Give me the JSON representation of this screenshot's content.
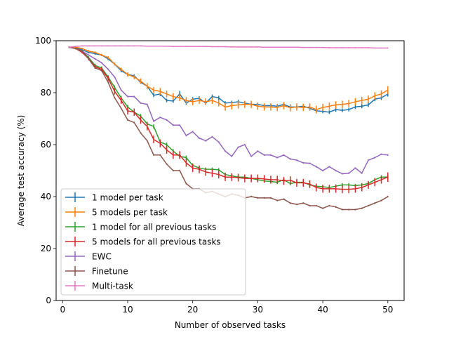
{
  "chart_data": {
    "type": "line",
    "xlabel": "Number of observed tasks",
    "ylabel": "Average test accuracy (%)",
    "xlim": [
      -1,
      52.5
    ],
    "ylim": [
      0,
      100
    ],
    "xticks": [
      0,
      10,
      20,
      30,
      40,
      50
    ],
    "yticks": [
      0,
      20,
      40,
      60,
      80,
      100
    ],
    "grid": false,
    "legend_position": "lower-left",
    "x": [
      1,
      2,
      3,
      4,
      5,
      6,
      7,
      8,
      9,
      10,
      11,
      12,
      13,
      14,
      15,
      16,
      17,
      18,
      19,
      20,
      21,
      22,
      23,
      24,
      25,
      26,
      27,
      28,
      29,
      30,
      31,
      32,
      33,
      34,
      35,
      36,
      37,
      38,
      39,
      40,
      41,
      42,
      43,
      44,
      45,
      46,
      47,
      48,
      49,
      50
    ],
    "series": [
      {
        "name": "1 model per task",
        "color": "#1f77b4",
        "error_bars": true,
        "values": [
          97.5,
          97.3,
          96.5,
          95.5,
          95.0,
          94.5,
          93.0,
          91.0,
          88.5,
          87.0,
          86.5,
          84.0,
          82.5,
          79.0,
          79.5,
          77.0,
          76.8,
          79.5,
          76.0,
          77.5,
          77.8,
          76.0,
          78.5,
          78.0,
          76.0,
          76.2,
          76.5,
          76.0,
          75.5,
          75.5,
          75.0,
          75.0,
          74.8,
          75.5,
          74.5,
          74.5,
          74.8,
          74.0,
          73.0,
          72.8,
          72.5,
          73.5,
          73.2,
          73.5,
          74.5,
          74.8,
          75.3,
          77.5,
          78.0,
          79.5
        ],
        "errors": [
          0.3,
          0.3,
          0.3,
          0.4,
          0.4,
          0.4,
          0.5,
          0.5,
          0.6,
          0.6,
          0.6,
          0.6,
          0.7,
          0.7,
          0.8,
          0.7,
          0.7,
          1.2,
          0.7,
          0.8,
          0.8,
          0.7,
          0.8,
          0.8,
          0.7,
          0.7,
          0.8,
          0.8,
          0.7,
          0.7,
          0.7,
          0.7,
          0.7,
          0.8,
          0.7,
          0.7,
          0.8,
          0.7,
          0.7,
          0.7,
          0.7,
          0.8,
          0.7,
          0.7,
          0.8,
          0.8,
          0.8,
          0.8,
          0.8,
          1.0
        ]
      },
      {
        "name": "5 models per task",
        "color": "#ff7f0e",
        "error_bars": true,
        "values": [
          97.5,
          97.5,
          97.0,
          96.0,
          95.5,
          94.5,
          93.5,
          91.0,
          89.0,
          87.0,
          86.0,
          84.5,
          82.5,
          81.0,
          80.5,
          79.5,
          78.5,
          78.0,
          77.0,
          76.5,
          77.0,
          76.5,
          77.0,
          76.0,
          74.5,
          75.0,
          75.3,
          75.5,
          75.5,
          74.8,
          74.5,
          74.5,
          74.3,
          75.0,
          74.2,
          74.5,
          74.3,
          74.5,
          73.5,
          74.3,
          74.8,
          75.3,
          75.5,
          75.8,
          76.5,
          77.0,
          77.5,
          78.8,
          79.5,
          81.0
        ],
        "errors": [
          0.3,
          0.3,
          0.3,
          0.4,
          0.4,
          0.4,
          0.5,
          0.6,
          0.6,
          0.8,
          0.8,
          1.0,
          1.2,
          1.2,
          1.3,
          1.3,
          1.3,
          1.3,
          1.3,
          1.3,
          1.3,
          1.3,
          1.3,
          1.3,
          1.4,
          1.4,
          1.4,
          1.4,
          1.4,
          1.4,
          1.4,
          1.4,
          1.4,
          1.4,
          1.4,
          1.4,
          1.4,
          1.4,
          1.5,
          1.4,
          1.4,
          1.4,
          1.4,
          1.4,
          1.4,
          1.4,
          1.4,
          1.4,
          1.4,
          1.5
        ]
      },
      {
        "name": "1 model for all previous tasks",
        "color": "#2ca02c",
        "error_bars": true,
        "values": [
          97.5,
          97.0,
          96.0,
          93.5,
          90.5,
          89.5,
          86.0,
          82.0,
          78.0,
          74.5,
          72.5,
          71.0,
          68.0,
          67.0,
          61.0,
          60.0,
          57.5,
          55.5,
          55.0,
          52.0,
          51.0,
          50.5,
          50.5,
          50.3,
          48.5,
          48.0,
          47.5,
          47.5,
          47.0,
          46.5,
          46.0,
          45.8,
          45.5,
          46.5,
          45.0,
          45.5,
          45.5,
          44.5,
          44.0,
          43.8,
          43.5,
          44.0,
          44.5,
          44.5,
          44.2,
          44.5,
          45.0,
          46.5,
          47.5,
          47.5
        ],
        "errors": [
          0.3,
          0.3,
          0.4,
          0.5,
          0.6,
          0.6,
          0.7,
          0.8,
          0.8,
          0.8,
          0.8,
          0.8,
          0.8,
          0.8,
          0.8,
          0.8,
          0.8,
          0.8,
          0.8,
          0.8,
          0.7,
          0.7,
          0.7,
          0.7,
          0.7,
          0.7,
          0.7,
          0.7,
          0.7,
          0.7,
          0.7,
          0.7,
          0.7,
          0.7,
          0.7,
          0.7,
          0.7,
          0.7,
          0.7,
          0.7,
          0.7,
          0.7,
          0.7,
          0.7,
          0.7,
          0.7,
          0.7,
          0.7,
          0.7,
          0.7
        ]
      },
      {
        "name": "5 models for all previous tasks",
        "color": "#d62728",
        "error_bars": true,
        "values": [
          97.5,
          97.0,
          95.5,
          93.0,
          90.0,
          89.0,
          85.5,
          80.5,
          77.0,
          73.0,
          72.5,
          69.5,
          67.0,
          62.0,
          60.5,
          58.0,
          56.0,
          56.0,
          53.0,
          51.0,
          50.5,
          49.5,
          49.0,
          48.5,
          47.5,
          47.5,
          47.3,
          47.0,
          47.0,
          47.0,
          46.8,
          46.5,
          46.5,
          46.0,
          46.3,
          45.3,
          45.3,
          44.8,
          43.5,
          43.0,
          43.0,
          43.0,
          42.8,
          42.8,
          43.0,
          43.5,
          44.5,
          45.5,
          46.5,
          47.5
        ],
        "errors": [
          0.3,
          0.3,
          0.4,
          0.6,
          0.8,
          0.8,
          1.0,
          1.2,
          1.3,
          1.4,
          1.4,
          1.5,
          1.5,
          1.5,
          1.5,
          1.5,
          1.5,
          1.5,
          1.5,
          1.5,
          1.5,
          1.5,
          1.5,
          1.5,
          1.5,
          1.5,
          1.5,
          1.5,
          1.5,
          1.5,
          1.5,
          1.5,
          1.5,
          1.5,
          1.5,
          1.5,
          1.5,
          1.5,
          1.5,
          1.5,
          1.5,
          1.5,
          1.5,
          1.5,
          1.5,
          1.5,
          1.5,
          1.5,
          1.5,
          1.8
        ]
      },
      {
        "name": "EWC",
        "color": "#9467bd",
        "error_bars": true,
        "values": [
          97.5,
          97.0,
          96.0,
          94.5,
          93.0,
          91.5,
          89.0,
          86.0,
          81.0,
          78.5,
          78.5,
          76.0,
          75.5,
          69.0,
          70.5,
          69.5,
          67.5,
          67.5,
          63.5,
          65.0,
          62.5,
          61.5,
          63.0,
          61.0,
          57.5,
          55.5,
          59.0,
          60.0,
          55.5,
          57.5,
          56.0,
          56.0,
          55.0,
          56.0,
          54.5,
          54.0,
          53.0,
          52.8,
          51.5,
          50.0,
          51.5,
          50.0,
          48.8,
          49.0,
          51.0,
          49.0,
          54.0,
          55.0,
          56.3,
          56.0
        ],
        "errors": [
          0.3,
          0.3,
          0.3,
          0.3,
          0.3,
          0.3,
          0.3,
          0.3,
          0.3,
          0.3,
          0.3,
          0.3,
          0.3,
          0.3,
          0.3,
          0.3,
          0.3,
          0.3,
          0.3,
          0.3,
          0.3,
          0.3,
          0.3,
          0.3,
          0.3,
          0.3,
          0.3,
          0.3,
          0.3,
          0.3,
          0.3,
          0.3,
          0.3,
          0.3,
          0.3,
          0.3,
          0.3,
          0.3,
          0.3,
          0.3,
          0.3,
          0.3,
          0.3,
          0.3,
          0.3,
          0.3,
          0.3,
          0.3,
          0.3,
          0.3
        ]
      },
      {
        "name": "Finetune",
        "color": "#8c564b",
        "error_bars": true,
        "values": [
          97.5,
          97.0,
          96.0,
          93.0,
          89.5,
          88.5,
          84.0,
          78.0,
          74.0,
          69.5,
          68.5,
          64.5,
          61.5,
          56.0,
          56.0,
          52.5,
          50.0,
          50.0,
          45.0,
          43.0,
          43.0,
          41.5,
          42.0,
          41.0,
          40.0,
          41.0,
          40.5,
          39.5,
          40.0,
          39.5,
          39.5,
          39.5,
          38.5,
          39.0,
          37.5,
          37.0,
          37.5,
          36.5,
          36.5,
          35.5,
          36.5,
          36.0,
          35.0,
          35.0,
          35.0,
          35.5,
          36.5,
          37.5,
          38.5,
          40.0
        ],
        "errors": [
          0.3,
          0.3,
          0.3,
          0.3,
          0.3,
          0.3,
          0.3,
          0.3,
          0.3,
          0.3,
          0.3,
          0.3,
          0.3,
          0.3,
          0.3,
          0.3,
          0.3,
          0.3,
          0.3,
          0.3,
          0.3,
          0.3,
          0.3,
          0.3,
          0.3,
          0.3,
          0.3,
          0.3,
          0.3,
          0.3,
          0.3,
          0.3,
          0.3,
          0.3,
          0.3,
          0.3,
          0.3,
          0.3,
          0.3,
          0.3,
          0.3,
          0.3,
          0.3,
          0.3,
          0.3,
          0.3,
          0.3,
          0.3,
          0.3,
          0.3
        ]
      },
      {
        "name": "Multi-task",
        "color": "#e377c2",
        "error_bars": true,
        "values": [
          97.5,
          97.8,
          98.0,
          98.0,
          98.0,
          98.0,
          98.0,
          98.0,
          98.0,
          98.0,
          98.0,
          98.0,
          97.9,
          97.9,
          97.9,
          97.9,
          97.8,
          97.8,
          97.8,
          97.8,
          97.8,
          97.8,
          97.7,
          97.7,
          97.7,
          97.6,
          97.6,
          97.6,
          97.6,
          97.6,
          97.5,
          97.5,
          97.5,
          97.5,
          97.5,
          97.5,
          97.4,
          97.4,
          97.4,
          97.4,
          97.3,
          97.3,
          97.3,
          97.3,
          97.3,
          97.3,
          97.3,
          97.2,
          97.2,
          97.2
        ],
        "errors": [
          0.2,
          0.2,
          0.2,
          0.2,
          0.2,
          0.2,
          0.2,
          0.2,
          0.2,
          0.2,
          0.2,
          0.2,
          0.2,
          0.2,
          0.2,
          0.2,
          0.2,
          0.2,
          0.2,
          0.2,
          0.2,
          0.2,
          0.2,
          0.2,
          0.2,
          0.2,
          0.2,
          0.2,
          0.2,
          0.2,
          0.2,
          0.2,
          0.2,
          0.2,
          0.2,
          0.2,
          0.2,
          0.2,
          0.2,
          0.2,
          0.2,
          0.2,
          0.2,
          0.2,
          0.2,
          0.2,
          0.2,
          0.2,
          0.2,
          0.2
        ]
      }
    ]
  }
}
